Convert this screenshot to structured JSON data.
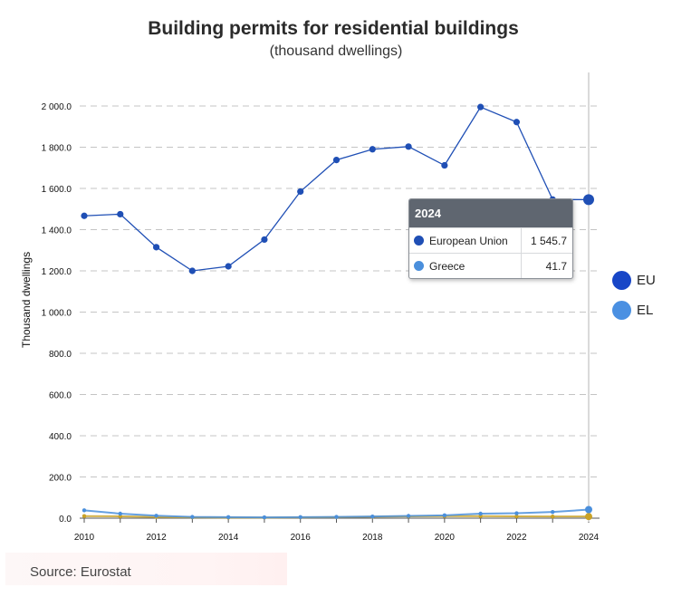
{
  "chart_data": {
    "type": "line",
    "title": "Building permits for residential buildings",
    "subtitle": "(thousand dwellings)",
    "xlabel": "",
    "ylabel": "Thousand dwellings",
    "x": [
      2010,
      2011,
      2012,
      2013,
      2014,
      2015,
      2016,
      2017,
      2018,
      2019,
      2020,
      2021,
      2022,
      2023,
      2024
    ],
    "x_tick_labels": [
      "2010",
      "2012",
      "2014",
      "2016",
      "2018",
      "2020",
      "2022",
      "2024"
    ],
    "y_tick_labels": [
      "0.0",
      "200.0",
      "400.0",
      "600.0",
      "800.0",
      "1 000.0",
      "1 200.0",
      "1 400.0",
      "1 600.0",
      "1 800.0",
      "2 000.0"
    ],
    "ylim": [
      0,
      2150
    ],
    "grid": true,
    "legend_position": "right",
    "series": [
      {
        "name": "European Union",
        "short": "EU",
        "color": "#1f4fb5",
        "values": [
          1467,
          1475,
          1315,
          1200,
          1222,
          1352,
          1585,
          1738,
          1790,
          1803,
          1712,
          1995,
          1922,
          1546,
          1545.7
        ]
      },
      {
        "name": "Greece",
        "short": "EL",
        "color": "#4a8fdc",
        "values": [
          38,
          22,
          12,
          6,
          5,
          4,
          5,
          6,
          8,
          11,
          14,
          22,
          24,
          30,
          41.7
        ]
      },
      {
        "name": "",
        "short": "",
        "color": "#c9a227",
        "values": [
          10,
          9,
          6,
          4,
          3,
          3,
          4,
          5,
          7,
          9,
          10,
          10,
          9,
          8,
          8
        ]
      }
    ],
    "tooltip": {
      "year": "2024",
      "rows": [
        {
          "name": "European Union",
          "value": "1 545.7",
          "color": "#1f4fb5"
        },
        {
          "name": "Greece",
          "value": "41.7",
          "color": "#4a8fdc"
        }
      ]
    },
    "legend": [
      {
        "label": "EU",
        "color": "#1746c7"
      },
      {
        "label": "EL",
        "color": "#4a90e2"
      }
    ]
  },
  "source": "Source: Eurostat"
}
